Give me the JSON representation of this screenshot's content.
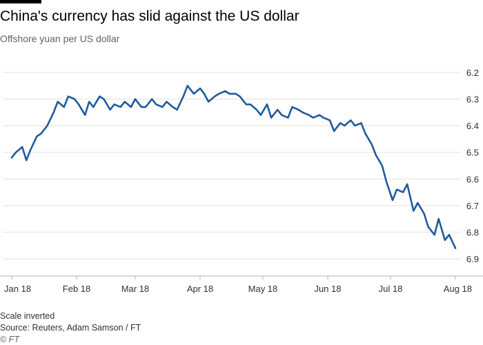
{
  "header": {
    "title": "China's currency has slid against the US dollar",
    "subtitle": "Offshore yuan per US dollar"
  },
  "footer": {
    "note": "Scale inverted",
    "source": "Source: Reuters, Adam Samson / FT",
    "credit": "© FT"
  },
  "colors": {
    "line": "#1e5a9c",
    "grid": "#e6e0da",
    "text": "#33302e",
    "muted": "#66605c",
    "bar": "#000000"
  },
  "chart_data": {
    "type": "line",
    "title": "China's currency has slid against the US dollar",
    "subtitle": "Offshore yuan per US dollar",
    "xlabel": "",
    "ylabel": "",
    "y_inverted": true,
    "y_axis_side": "right",
    "ylim": [
      6.2,
      6.9
    ],
    "yticks": [
      "6.2",
      "6.3",
      "6.4",
      "6.5",
      "6.6",
      "6.7",
      "6.8",
      "6.9"
    ],
    "xticks": [
      {
        "label": "Jan 18",
        "date": "2018-01-01"
      },
      {
        "label": "Feb 18",
        "date": "2018-02-01"
      },
      {
        "label": "Mar 18",
        "date": "2018-03-01"
      },
      {
        "label": "Apr 18",
        "date": "2018-04-01"
      },
      {
        "label": "May 18",
        "date": "2018-05-01"
      },
      {
        "label": "Jun 18",
        "date": "2018-06-01"
      },
      {
        "label": "Jul 18",
        "date": "2018-07-01"
      },
      {
        "label": "Aug 18",
        "date": "2018-08-01"
      }
    ],
    "grid": true,
    "series": [
      {
        "x": [
          "2018-01-01",
          "2018-01-03",
          "2018-01-06",
          "2018-01-08",
          "2018-01-10",
          "2018-01-13",
          "2018-01-15",
          "2018-01-18",
          "2018-01-21",
          "2018-01-23",
          "2018-01-26",
          "2018-01-28",
          "2018-01-31",
          "2018-02-02",
          "2018-02-05",
          "2018-02-07",
          "2018-02-09",
          "2018-02-12",
          "2018-02-14",
          "2018-02-17",
          "2018-02-19",
          "2018-02-22",
          "2018-02-24",
          "2018-02-27",
          "2018-03-01",
          "2018-03-04",
          "2018-03-06",
          "2018-03-09",
          "2018-03-11",
          "2018-03-14",
          "2018-03-16",
          "2018-03-19",
          "2018-03-21",
          "2018-03-24",
          "2018-03-26",
          "2018-03-29",
          "2018-04-01",
          "2018-04-03",
          "2018-04-05",
          "2018-04-08",
          "2018-04-10",
          "2018-04-13",
          "2018-04-15",
          "2018-04-18",
          "2018-04-20",
          "2018-04-23",
          "2018-04-25",
          "2018-04-28",
          "2018-04-30",
          "2018-05-03",
          "2018-05-05",
          "2018-05-08",
          "2018-05-10",
          "2018-05-13",
          "2018-05-15",
          "2018-05-18",
          "2018-05-20",
          "2018-05-23",
          "2018-05-25",
          "2018-05-28",
          "2018-05-30",
          "2018-06-02",
          "2018-06-04",
          "2018-06-07",
          "2018-06-09",
          "2018-06-12",
          "2018-06-14",
          "2018-06-17",
          "2018-06-19",
          "2018-06-22",
          "2018-06-24",
          "2018-06-27",
          "2018-06-29",
          "2018-07-02",
          "2018-07-04",
          "2018-07-07",
          "2018-07-09",
          "2018-07-12",
          "2018-07-14",
          "2018-07-17",
          "2018-07-19",
          "2018-07-22",
          "2018-07-24",
          "2018-07-27",
          "2018-07-29",
          "2018-08-01"
        ],
        "values": [
          6.52,
          6.5,
          6.48,
          6.53,
          6.49,
          6.44,
          6.43,
          6.4,
          6.35,
          6.31,
          6.33,
          6.29,
          6.3,
          6.32,
          6.36,
          6.31,
          6.33,
          6.29,
          6.3,
          6.34,
          6.32,
          6.33,
          6.31,
          6.33,
          6.3,
          6.33,
          6.33,
          6.3,
          6.32,
          6.33,
          6.31,
          6.33,
          6.34,
          6.29,
          6.25,
          6.28,
          6.26,
          6.28,
          6.31,
          6.29,
          6.28,
          6.27,
          6.28,
          6.28,
          6.29,
          6.32,
          6.32,
          6.34,
          6.36,
          6.32,
          6.37,
          6.34,
          6.36,
          6.37,
          6.33,
          6.34,
          6.35,
          6.36,
          6.37,
          6.36,
          6.37,
          6.38,
          6.42,
          6.39,
          6.4,
          6.38,
          6.4,
          6.39,
          6.43,
          6.47,
          6.51,
          6.55,
          6.61,
          6.68,
          6.64,
          6.65,
          6.62,
          6.72,
          6.69,
          6.73,
          6.78,
          6.81,
          6.75,
          6.83,
          6.81,
          6.86
        ]
      }
    ]
  }
}
